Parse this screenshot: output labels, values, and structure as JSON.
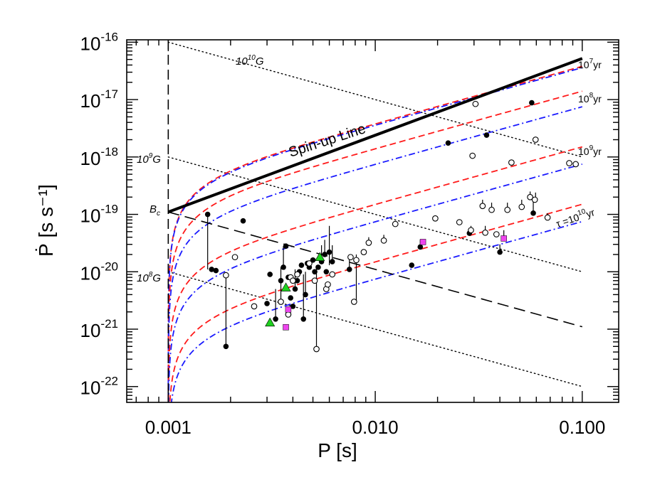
{
  "chart_data": {
    "type": "scatter",
    "xlabel": "P [s]",
    "ylabel": "Ṗ [s s⁻¹]",
    "xscale": "log",
    "yscale": "log",
    "xlim": [
      0.00063,
      0.15
    ],
    "ylim": [
      5.3e-23,
      1.1e-16
    ],
    "x_ticks": [
      {
        "value": 0.001,
        "label": "0.001"
      },
      {
        "value": 0.01,
        "label": "0.010"
      },
      {
        "value": 0.1,
        "label": "0.100"
      }
    ],
    "y_ticks": [
      {
        "value": 1e-16,
        "mantissa": "10",
        "exp": "-16"
      },
      {
        "value": 1e-17,
        "mantissa": "10",
        "exp": "-17"
      },
      {
        "value": 1e-18,
        "mantissa": "10",
        "exp": "-18"
      },
      {
        "value": 1e-19,
        "mantissa": "10",
        "exp": "-19"
      },
      {
        "value": 1e-20,
        "mantissa": "10",
        "exp": "-20"
      },
      {
        "value": 1e-21,
        "mantissa": "10",
        "exp": "-21"
      },
      {
        "value": 1e-22,
        "mantissa": "10",
        "exp": "-22"
      }
    ],
    "lines": {
      "spin_up": {
        "label": "Spin-up Line",
        "points": [
          [
            0.001,
            1.1e-19
          ],
          [
            0.1,
            5.2e-17
          ]
        ],
        "color": "#000000"
      },
      "critical_period": {
        "x": 0.001,
        "color": "#000000"
      },
      "critical_field": {
        "label_main": "B",
        "label_sub": "c",
        "points": [
          [
            0.001,
            1.1e-19
          ],
          [
            0.1,
            1.1e-21
          ]
        ],
        "color": "#000000"
      },
      "field_lines": [
        {
          "label_base": "10",
          "label_exp": "10",
          "label_unit": "G",
          "points": [
            [
              0.001,
              1e-16
            ],
            [
              0.1,
              1e-18
            ]
          ]
        },
        {
          "label_base": "10",
          "label_exp": "9",
          "label_unit": "G",
          "points": [
            [
              0.001,
              1e-18
            ],
            [
              0.1,
              1e-20
            ]
          ]
        },
        {
          "label_base": "10",
          "label_exp": "8",
          "label_unit": "G",
          "points": [
            [
              0.001,
              1e-20
            ],
            [
              0.1,
              1e-22
            ]
          ]
        }
      ],
      "isochrones": [
        {
          "label_base": "10",
          "label_exp": "7",
          "label_unit": "yr",
          "label_prefix": "",
          "red_end": 3.8e-17,
          "blue_end": 3.6e-17
        },
        {
          "label_base": "10",
          "label_exp": "8",
          "label_unit": "yr",
          "label_prefix": "",
          "red_end": 1.4e-17,
          "blue_end": 7.5e-18
        },
        {
          "label_base": "10",
          "label_exp": "9",
          "label_unit": "yr",
          "label_prefix": "",
          "red_end": 1.5e-18,
          "blue_end": 7.5e-19
        },
        {
          "label_base": "10",
          "label_exp": "10",
          "label_unit": "yr",
          "label_prefix": "τ =",
          "red_end": 1.5e-19,
          "blue_end": 7.5e-20
        }
      ],
      "isochrone_colors": {
        "red": "#ff1a1a",
        "blue": "#1a1aff"
      }
    },
    "series": [
      {
        "marker": "filled-circle",
        "color": "#000000",
        "points": [
          [
            0.00155,
            1e-19
          ],
          [
            0.00162,
            1.1e-20
          ],
          [
            0.0017,
            1.05e-20
          ],
          [
            0.0019,
            5e-22
          ],
          [
            0.0023,
            7.7e-20
          ],
          [
            0.003,
            2.8e-21
          ],
          [
            0.0031,
            9e-21
          ],
          [
            0.0033,
            1.5e-21
          ],
          [
            0.0035,
            7e-21
          ],
          [
            0.0036,
            1.2e-20
          ],
          [
            0.0037,
            2.8e-20
          ],
          [
            0.0038,
            8e-21
          ],
          [
            0.0039,
            3.5e-21
          ],
          [
            0.004,
            2.5e-21
          ],
          [
            0.0041,
            5e-21
          ],
          [
            0.0042,
            7e-21
          ],
          [
            0.0043,
            1e-20
          ],
          [
            0.0044,
            1.3e-20
          ],
          [
            0.0045,
            1.5e-21
          ],
          [
            0.0046,
            4e-21
          ],
          [
            0.0047,
            1.4e-20
          ],
          [
            0.0048,
            1.2e-20
          ],
          [
            0.005,
            1.6e-20
          ],
          [
            0.0051,
            1e-20
          ],
          [
            0.0053,
            1.2e-20
          ],
          [
            0.0055,
            1.5e-20
          ],
          [
            0.0057,
            2e-20
          ],
          [
            0.0058,
            1e-20
          ],
          [
            0.006,
            2.2e-20
          ],
          [
            0.0062,
            1.5e-20
          ],
          [
            0.0075,
            1.1e-20
          ],
          [
            0.015,
            1.3e-20
          ],
          [
            0.0165,
            2.7e-20
          ],
          [
            0.0225,
            1.75e-18
          ],
          [
            0.0285,
            4.7e-20
          ],
          [
            0.0345,
            2.4e-18
          ],
          [
            0.04,
            2.2e-20
          ],
          [
            0.057,
            8.8e-18
          ],
          [
            0.058,
            1.05e-19
          ]
        ]
      },
      {
        "marker": "open-circle",
        "color": "#000000",
        "points": [
          [
            0.0019,
            8.7e-21
          ],
          [
            0.0021,
            1.8e-20
          ],
          [
            0.0026,
            2.5e-21
          ],
          [
            0.0035,
            3e-21
          ],
          [
            0.0038,
            1.8e-21
          ],
          [
            0.0039,
            8e-21
          ],
          [
            0.004,
            7e-21
          ],
          [
            0.0042,
            9e-21
          ],
          [
            0.0048,
            1.4e-20
          ],
          [
            0.0051,
            7e-21
          ],
          [
            0.0052,
            4.5e-22
          ],
          [
            0.0058,
            5e-21
          ],
          [
            0.0059,
            6e-21
          ],
          [
            0.0062,
            9e-21
          ],
          [
            0.0076,
            1.8e-20
          ],
          [
            0.0079,
            3e-21
          ],
          [
            0.0081,
            1.6e-20
          ],
          [
            0.0088,
            2.2e-20
          ],
          [
            0.0093,
            3.2e-20
          ],
          [
            0.011,
            3.5e-20
          ],
          [
            0.0125,
            6.8e-20
          ],
          [
            0.0195,
            8.5e-20
          ],
          [
            0.0255,
            7.3e-20
          ],
          [
            0.029,
            5.3e-20
          ],
          [
            0.0295,
            1.05e-18
          ],
          [
            0.0305,
            8.4e-18
          ],
          [
            0.033,
            1.4e-19
          ],
          [
            0.034,
            4.8e-20
          ],
          [
            0.0365,
            1.2e-19
          ],
          [
            0.0385,
            4.5e-20
          ],
          [
            0.0435,
            1.2e-19
          ],
          [
            0.0455,
            8e-19
          ],
          [
            0.051,
            1.35e-19
          ],
          [
            0.056,
            2e-19
          ],
          [
            0.059,
            1.8e-19
          ],
          [
            0.0595,
            2e-18
          ],
          [
            0.068,
            8.8e-20
          ],
          [
            0.0865,
            7.8e-19
          ],
          [
            0.093,
            7.5e-19
          ]
        ]
      },
      {
        "marker": "triangle",
        "color": "#1fd11f",
        "points": [
          [
            0.0031,
            1.3e-21
          ],
          [
            0.0037,
            5.3e-21
          ],
          [
            0.0054,
            1.8e-20
          ]
        ]
      },
      {
        "marker": "square",
        "color": "#ee45ee",
        "points": [
          [
            0.0037,
            1.08e-21
          ],
          [
            0.0038,
            2.2e-21
          ],
          [
            0.017,
            3.3e-20
          ],
          [
            0.0418,
            3.8e-20
          ]
        ]
      }
    ],
    "error_segments": [
      [
        0.00155,
        1e-19,
        1.1e-20
      ],
      [
        0.0019,
        5e-22,
        9e-21
      ],
      [
        0.0033,
        1.5e-21,
        5e-21
      ],
      [
        0.0035,
        3e-21,
        1.2e-20
      ],
      [
        0.0036,
        1.2e-20,
        2.8e-20
      ],
      [
        0.0041,
        5e-21,
        1.1e-20
      ],
      [
        0.0045,
        1.5e-21,
        9e-21
      ],
      [
        0.0046,
        4e-21,
        1e-20
      ],
      [
        0.0052,
        4.5e-22,
        1.3e-20
      ],
      [
        0.0055,
        1.5e-20,
        2.9e-20
      ],
      [
        0.0057,
        2e-20,
        3.6e-20
      ],
      [
        0.006,
        1.3e-20,
        6.3e-20
      ],
      [
        0.0062,
        1.5e-20,
        2.9e-20
      ],
      [
        0.0075,
        1.1e-20,
        2e-20
      ],
      [
        0.0081,
        3e-21,
        2e-20
      ],
      [
        0.0093,
        3.2e-20,
        4e-20
      ],
      [
        0.011,
        3.5e-20,
        4.4e-20
      ],
      [
        0.029,
        5.3e-20,
        6.3e-20
      ],
      [
        0.033,
        1.4e-19,
        1.8e-19
      ],
      [
        0.034,
        4.8e-20,
        6.3e-20
      ],
      [
        0.0365,
        1.2e-19,
        1.6e-19
      ],
      [
        0.0418,
        3.8e-20,
        5.3e-20
      ],
      [
        0.0435,
        1.2e-19,
        1.6e-19
      ],
      [
        0.051,
        1.35e-19,
        1.8e-19
      ],
      [
        0.056,
        2e-19,
        2.5e-19
      ],
      [
        0.058,
        1.05e-19,
        2e-19
      ],
      [
        0.0595,
        1.8e-19,
        2.4e-19
      ],
      [
        0.068,
        8.8e-20,
        1.05e-19
      ],
      [
        0.0165,
        2.7e-20,
        3.6e-20
      ],
      [
        0.04,
        2.2e-20,
        3e-20
      ]
    ]
  }
}
